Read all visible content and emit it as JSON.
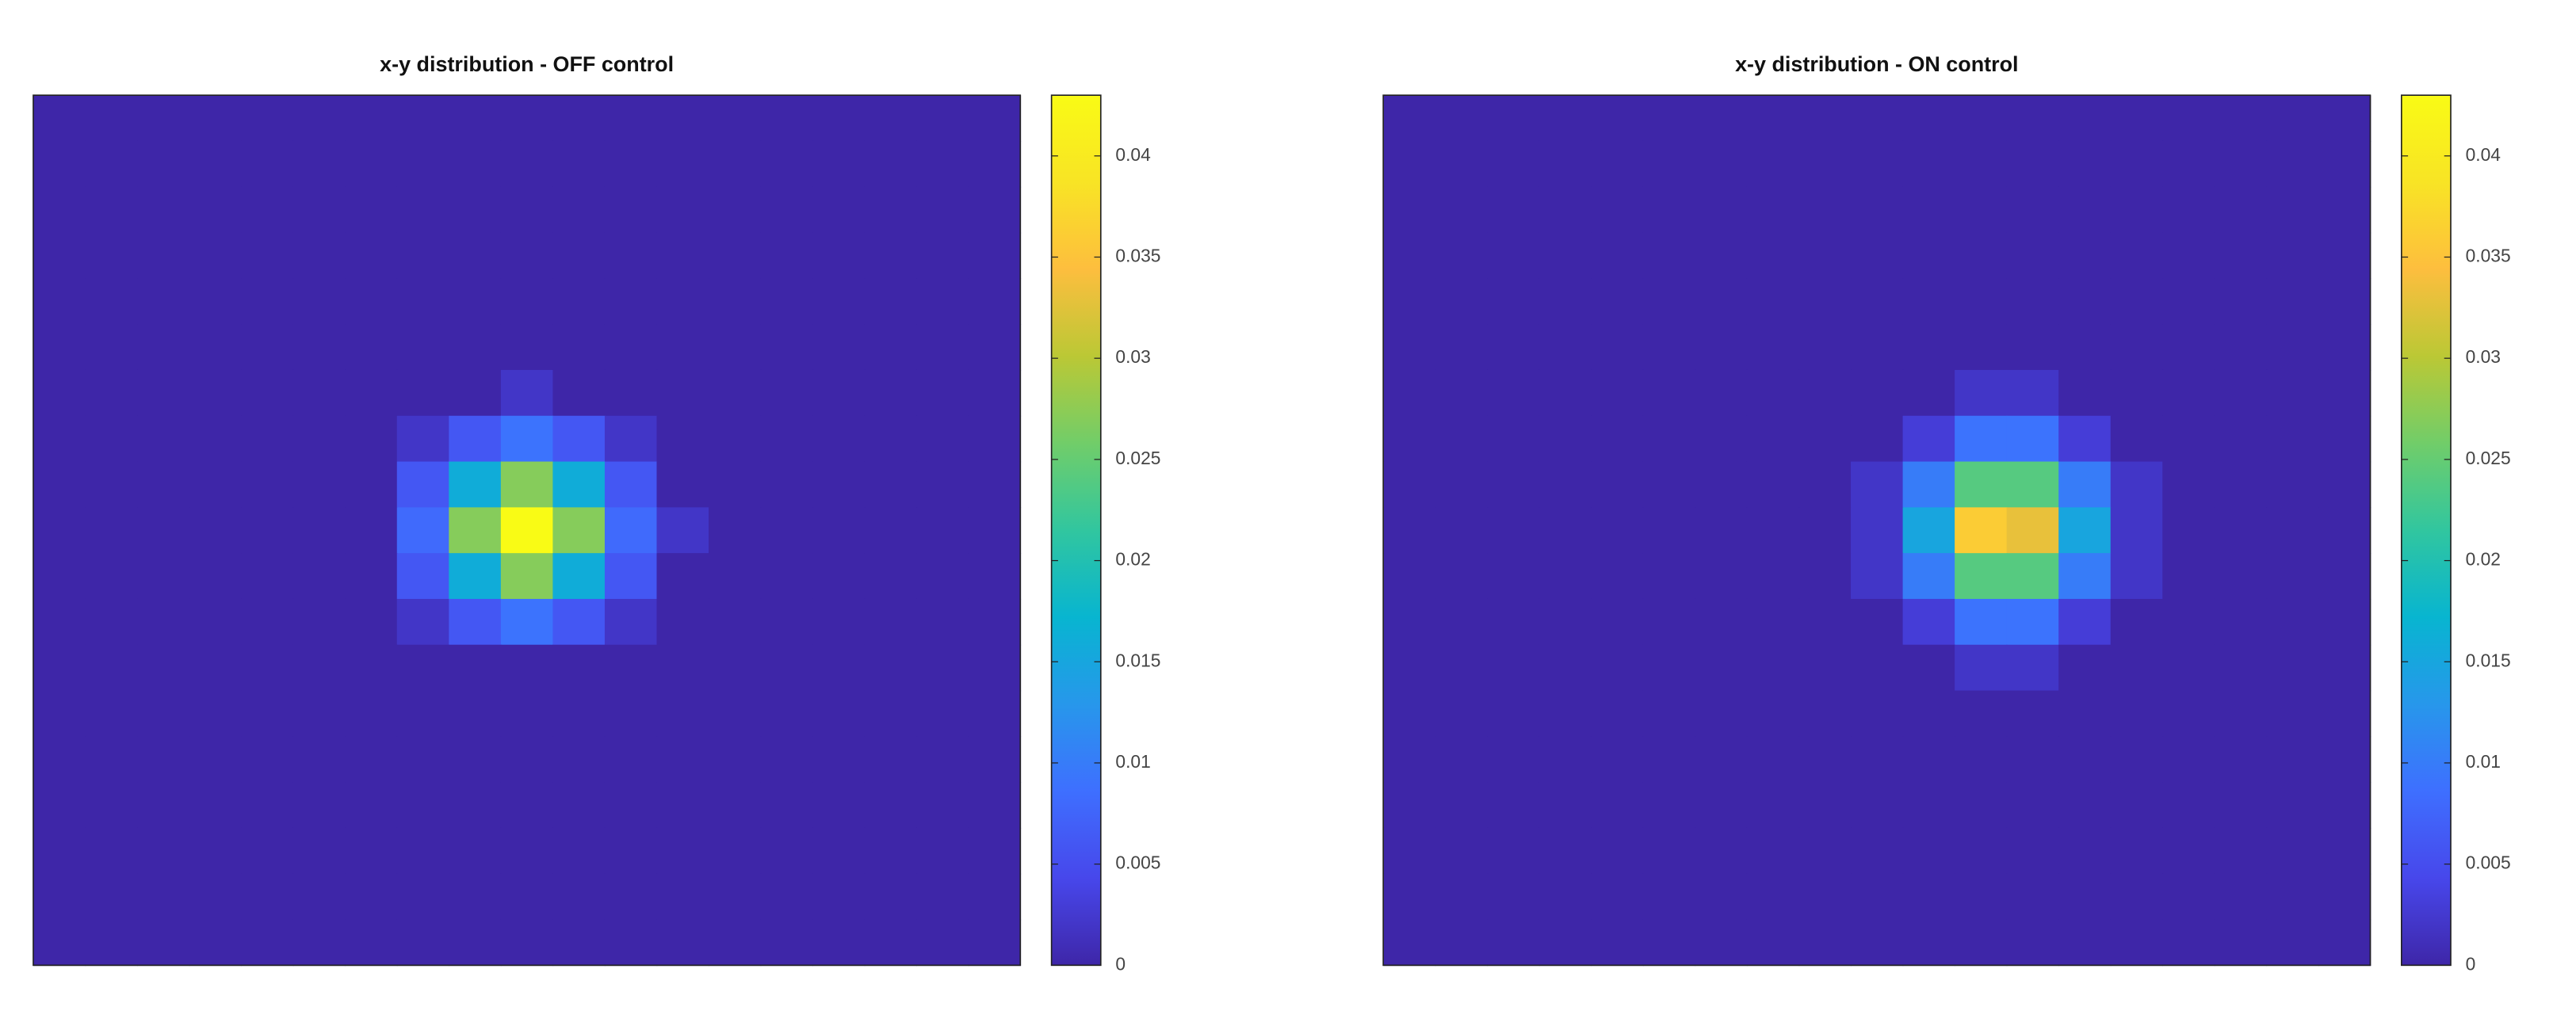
{
  "chart_data": [
    {
      "type": "heatmap",
      "title": "x-y distribution - OFF control",
      "colormap": "parula",
      "clim": [
        0,
        0.043
      ],
      "cticks": [
        0,
        0.005,
        0.01,
        0.015,
        0.02,
        0.025,
        0.03,
        0.035,
        0.04
      ],
      "z": [
        [
          0,
          0,
          0,
          0,
          0,
          0,
          0,
          0,
          0,
          0,
          0,
          0,
          0,
          0,
          0,
          0,
          0,
          0,
          0
        ],
        [
          0,
          0,
          0,
          0,
          0,
          0,
          0,
          0,
          0,
          0,
          0,
          0,
          0,
          0,
          0,
          0,
          0,
          0,
          0
        ],
        [
          0,
          0,
          0,
          0,
          0,
          0,
          0,
          0,
          0,
          0,
          0,
          0,
          0,
          0,
          0,
          0,
          0,
          0,
          0
        ],
        [
          0,
          0,
          0,
          0,
          0,
          0,
          0,
          0,
          0,
          0,
          0,
          0,
          0,
          0,
          0,
          0,
          0,
          0,
          0
        ],
        [
          0,
          0,
          0,
          0,
          0,
          0,
          0,
          0,
          0,
          0,
          0,
          0,
          0,
          0,
          0,
          0,
          0,
          0,
          0
        ],
        [
          0,
          0,
          0,
          0,
          0,
          0,
          0,
          0,
          0,
          0,
          0,
          0,
          0,
          0,
          0,
          0,
          0,
          0,
          0
        ],
        [
          0,
          0,
          0,
          0,
          0,
          0,
          0,
          0,
          0,
          0.002,
          0,
          0,
          0,
          0,
          0,
          0,
          0,
          0,
          0
        ],
        [
          0,
          0,
          0,
          0,
          0,
          0,
          0,
          0.002,
          0.006,
          0.009,
          0.006,
          0.002,
          0,
          0,
          0,
          0,
          0,
          0,
          0
        ],
        [
          0,
          0,
          0,
          0,
          0,
          0,
          0,
          0.006,
          0.016,
          0.027,
          0.016,
          0.006,
          0,
          0,
          0,
          0,
          0,
          0,
          0
        ],
        [
          0,
          0,
          0,
          0,
          0,
          0,
          0,
          0.008,
          0.027,
          0.043,
          0.027,
          0.008,
          0.002,
          0,
          0,
          0,
          0,
          0,
          0
        ],
        [
          0,
          0,
          0,
          0,
          0,
          0,
          0,
          0.006,
          0.016,
          0.027,
          0.016,
          0.006,
          0,
          0,
          0,
          0,
          0,
          0,
          0
        ],
        [
          0,
          0,
          0,
          0,
          0,
          0,
          0,
          0.002,
          0.006,
          0.009,
          0.006,
          0.002,
          0,
          0,
          0,
          0,
          0,
          0,
          0
        ],
        [
          0,
          0,
          0,
          0,
          0,
          0,
          0,
          0,
          0,
          0,
          0,
          0,
          0,
          0,
          0,
          0,
          0,
          0,
          0
        ],
        [
          0,
          0,
          0,
          0,
          0,
          0,
          0,
          0,
          0,
          0,
          0,
          0,
          0,
          0,
          0,
          0,
          0,
          0,
          0
        ],
        [
          0,
          0,
          0,
          0,
          0,
          0,
          0,
          0,
          0,
          0,
          0,
          0,
          0,
          0,
          0,
          0,
          0,
          0,
          0
        ],
        [
          0,
          0,
          0,
          0,
          0,
          0,
          0,
          0,
          0,
          0,
          0,
          0,
          0,
          0,
          0,
          0,
          0,
          0,
          0
        ],
        [
          0,
          0,
          0,
          0,
          0,
          0,
          0,
          0,
          0,
          0,
          0,
          0,
          0,
          0,
          0,
          0,
          0,
          0,
          0
        ],
        [
          0,
          0,
          0,
          0,
          0,
          0,
          0,
          0,
          0,
          0,
          0,
          0,
          0,
          0,
          0,
          0,
          0,
          0,
          0
        ],
        [
          0,
          0,
          0,
          0,
          0,
          0,
          0,
          0,
          0,
          0,
          0,
          0,
          0,
          0,
          0,
          0,
          0,
          0,
          0
        ]
      ]
    },
    {
      "type": "heatmap",
      "title": "x-y distribution - ON control",
      "colormap": "parula",
      "clim": [
        0,
        0.043
      ],
      "cticks": [
        0,
        0.005,
        0.01,
        0.015,
        0.02,
        0.025,
        0.03,
        0.035,
        0.04
      ],
      "z": [
        [
          0,
          0,
          0,
          0,
          0,
          0,
          0,
          0,
          0,
          0,
          0,
          0,
          0,
          0,
          0,
          0,
          0,
          0,
          0
        ],
        [
          0,
          0,
          0,
          0,
          0,
          0,
          0,
          0,
          0,
          0,
          0,
          0,
          0,
          0,
          0,
          0,
          0,
          0,
          0
        ],
        [
          0,
          0,
          0,
          0,
          0,
          0,
          0,
          0,
          0,
          0,
          0,
          0,
          0,
          0,
          0,
          0,
          0,
          0,
          0
        ],
        [
          0,
          0,
          0,
          0,
          0,
          0,
          0,
          0,
          0,
          0,
          0,
          0,
          0,
          0,
          0,
          0,
          0,
          0,
          0
        ],
        [
          0,
          0,
          0,
          0,
          0,
          0,
          0,
          0,
          0,
          0,
          0,
          0,
          0,
          0,
          0,
          0,
          0,
          0,
          0
        ],
        [
          0,
          0,
          0,
          0,
          0,
          0,
          0,
          0,
          0,
          0,
          0,
          0,
          0,
          0,
          0,
          0,
          0,
          0,
          0
        ],
        [
          0,
          0,
          0,
          0,
          0,
          0,
          0,
          0,
          0,
          0,
          0,
          0.002,
          0.002,
          0,
          0,
          0,
          0,
          0,
          0
        ],
        [
          0,
          0,
          0,
          0,
          0,
          0,
          0,
          0,
          0,
          0,
          0.003,
          0.009,
          0.009,
          0.003,
          0,
          0,
          0,
          0,
          0
        ],
        [
          0,
          0,
          0,
          0,
          0,
          0,
          0,
          0,
          0,
          0.002,
          0.01,
          0.024,
          0.024,
          0.01,
          0.002,
          0,
          0,
          0,
          0
        ],
        [
          0,
          0,
          0,
          0,
          0,
          0,
          0,
          0,
          0,
          0.002,
          0.015,
          0.036,
          0.033,
          0.015,
          0.002,
          0,
          0,
          0,
          0
        ],
        [
          0,
          0,
          0,
          0,
          0,
          0,
          0,
          0,
          0,
          0.002,
          0.01,
          0.024,
          0.024,
          0.01,
          0.002,
          0,
          0,
          0,
          0
        ],
        [
          0,
          0,
          0,
          0,
          0,
          0,
          0,
          0,
          0,
          0,
          0.003,
          0.009,
          0.009,
          0.003,
          0,
          0,
          0,
          0,
          0
        ],
        [
          0,
          0,
          0,
          0,
          0,
          0,
          0,
          0,
          0,
          0,
          0,
          0.002,
          0.002,
          0,
          0,
          0,
          0,
          0,
          0
        ],
        [
          0,
          0,
          0,
          0,
          0,
          0,
          0,
          0,
          0,
          0,
          0,
          0,
          0,
          0,
          0,
          0,
          0,
          0,
          0
        ],
        [
          0,
          0,
          0,
          0,
          0,
          0,
          0,
          0,
          0,
          0,
          0,
          0,
          0,
          0,
          0,
          0,
          0,
          0,
          0
        ],
        [
          0,
          0,
          0,
          0,
          0,
          0,
          0,
          0,
          0,
          0,
          0,
          0,
          0,
          0,
          0,
          0,
          0,
          0,
          0
        ],
        [
          0,
          0,
          0,
          0,
          0,
          0,
          0,
          0,
          0,
          0,
          0,
          0,
          0,
          0,
          0,
          0,
          0,
          0,
          0
        ],
        [
          0,
          0,
          0,
          0,
          0,
          0,
          0,
          0,
          0,
          0,
          0,
          0,
          0,
          0,
          0,
          0,
          0,
          0,
          0
        ],
        [
          0,
          0,
          0,
          0,
          0,
          0,
          0,
          0,
          0,
          0,
          0,
          0,
          0,
          0,
          0,
          0,
          0,
          0,
          0
        ]
      ]
    }
  ]
}
